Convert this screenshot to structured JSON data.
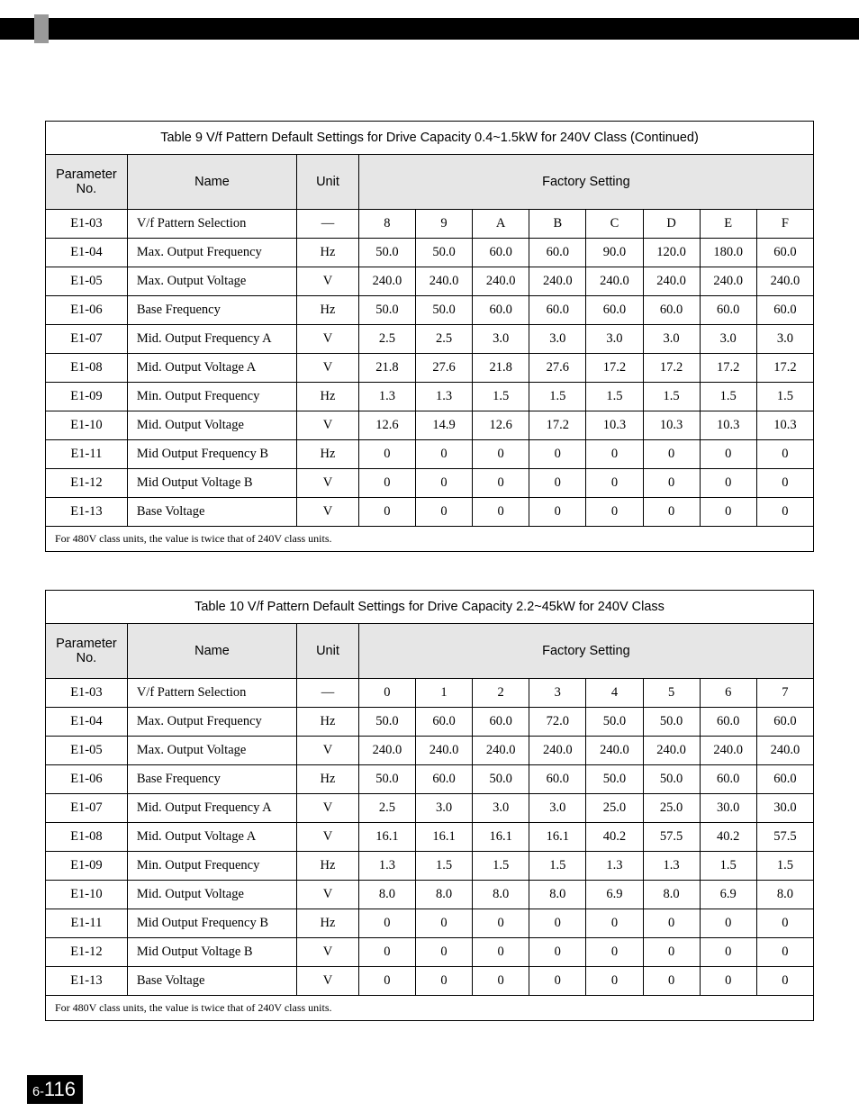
{
  "page": {
    "chapter": "6",
    "number": "116"
  },
  "tables": [
    {
      "caption": "Table 9 V/f Pattern Default Settings for Drive Capacity 0.4~1.5kW for 240V Class (Continued)",
      "columns": {
        "param": "Parameter No.",
        "name": "Name",
        "unit": "Unit",
        "factory": "Factory Setting"
      },
      "rows": [
        {
          "param": "E1-03",
          "name": "V/f Pattern Selection",
          "unit": "—",
          "vals": [
            "8",
            "9",
            "A",
            "B",
            "C",
            "D",
            "E",
            "F"
          ]
        },
        {
          "param": "E1-04",
          "name": "Max. Output Frequency",
          "unit": "Hz",
          "vals": [
            "50.0",
            "50.0",
            "60.0",
            "60.0",
            "90.0",
            "120.0",
            "180.0",
            "60.0"
          ]
        },
        {
          "param": "E1-05",
          "name": "Max. Output Voltage",
          "unit": "V",
          "vals": [
            "240.0",
            "240.0",
            "240.0",
            "240.0",
            "240.0",
            "240.0",
            "240.0",
            "240.0"
          ]
        },
        {
          "param": "E1-06",
          "name": "Base Frequency",
          "unit": "Hz",
          "vals": [
            "50.0",
            "50.0",
            "60.0",
            "60.0",
            "60.0",
            "60.0",
            "60.0",
            "60.0"
          ]
        },
        {
          "param": "E1-07",
          "name": "Mid. Output Frequency A",
          "unit": "V",
          "vals": [
            "2.5",
            "2.5",
            "3.0",
            "3.0",
            "3.0",
            "3.0",
            "3.0",
            "3.0"
          ]
        },
        {
          "param": "E1-08",
          "name": "Mid. Output Voltage A",
          "unit": "V",
          "vals": [
            "21.8",
            "27.6",
            "21.8",
            "27.6",
            "17.2",
            "17.2",
            "17.2",
            "17.2"
          ]
        },
        {
          "param": "E1-09",
          "name": "Min. Output Frequency",
          "unit": "Hz",
          "vals": [
            "1.3",
            "1.3",
            "1.5",
            "1.5",
            "1.5",
            "1.5",
            "1.5",
            "1.5"
          ]
        },
        {
          "param": "E1-10",
          "name": "Mid. Output Voltage",
          "unit": "V",
          "vals": [
            "12.6",
            "14.9",
            "12.6",
            "17.2",
            "10.3",
            "10.3",
            "10.3",
            "10.3"
          ]
        },
        {
          "param": "E1-11",
          "name": "Mid Output Frequency B",
          "unit": "Hz",
          "vals": [
            "0",
            "0",
            "0",
            "0",
            "0",
            "0",
            "0",
            "0"
          ]
        },
        {
          "param": "E1-12",
          "name": "Mid Output Voltage B",
          "unit": "V",
          "vals": [
            "0",
            "0",
            "0",
            "0",
            "0",
            "0",
            "0",
            "0"
          ]
        },
        {
          "param": "E1-13",
          "name": "Base Voltage",
          "unit": "V",
          "vals": [
            "0",
            "0",
            "0",
            "0",
            "0",
            "0",
            "0",
            "0"
          ]
        }
      ],
      "footnote": "For 480V class units, the value is twice that of 240V class units."
    },
    {
      "caption": "Table 10 V/f Pattern Default Settings for Drive Capacity 2.2~45kW for 240V Class",
      "columns": {
        "param": "Parameter No.",
        "name": "Name",
        "unit": "Unit",
        "factory": "Factory Setting"
      },
      "rows": [
        {
          "param": "E1-03",
          "name": "V/f Pattern Selection",
          "unit": "—",
          "vals": [
            "0",
            "1",
            "2",
            "3",
            "4",
            "5",
            "6",
            "7"
          ]
        },
        {
          "param": "E1-04",
          "name": "Max. Output Frequency",
          "unit": "Hz",
          "vals": [
            "50.0",
            "60.0",
            "60.0",
            "72.0",
            "50.0",
            "50.0",
            "60.0",
            "60.0"
          ]
        },
        {
          "param": "E1-05",
          "name": "Max. Output Voltage",
          "unit": "V",
          "vals": [
            "240.0",
            "240.0",
            "240.0",
            "240.0",
            "240.0",
            "240.0",
            "240.0",
            "240.0"
          ]
        },
        {
          "param": "E1-06",
          "name": "Base Frequency",
          "unit": "Hz",
          "vals": [
            "50.0",
            "60.0",
            "50.0",
            "60.0",
            "50.0",
            "50.0",
            "60.0",
            "60.0"
          ]
        },
        {
          "param": "E1-07",
          "name": "Mid. Output Frequency A",
          "unit": "V",
          "vals": [
            "2.5",
            "3.0",
            "3.0",
            "3.0",
            "25.0",
            "25.0",
            "30.0",
            "30.0"
          ]
        },
        {
          "param": "E1-08",
          "name": "Mid. Output Voltage A",
          "unit": "V",
          "vals": [
            "16.1",
            "16.1",
            "16.1",
            "16.1",
            "40.2",
            "57.5",
            "40.2",
            "57.5"
          ]
        },
        {
          "param": "E1-09",
          "name": "Min. Output Frequency",
          "unit": "Hz",
          "vals": [
            "1.3",
            "1.5",
            "1.5",
            "1.5",
            "1.3",
            "1.3",
            "1.5",
            "1.5"
          ]
        },
        {
          "param": "E1-10",
          "name": "Mid. Output Voltage",
          "unit": "V",
          "vals": [
            "8.0",
            "8.0",
            "8.0",
            "8.0",
            "6.9",
            "8.0",
            "6.9",
            "8.0"
          ]
        },
        {
          "param": "E1-11",
          "name": "Mid Output Frequency B",
          "unit": "Hz",
          "vals": [
            "0",
            "0",
            "0",
            "0",
            "0",
            "0",
            "0",
            "0"
          ]
        },
        {
          "param": "E1-12",
          "name": "Mid Output Voltage B",
          "unit": "V",
          "vals": [
            "0",
            "0",
            "0",
            "0",
            "0",
            "0",
            "0",
            "0"
          ]
        },
        {
          "param": "E1-13",
          "name": "Base Voltage",
          "unit": "V",
          "vals": [
            "0",
            "0",
            "0",
            "0",
            "0",
            "0",
            "0",
            "0"
          ]
        }
      ],
      "footnote": "For 480V class units, the value is twice that of 240V class units."
    }
  ]
}
